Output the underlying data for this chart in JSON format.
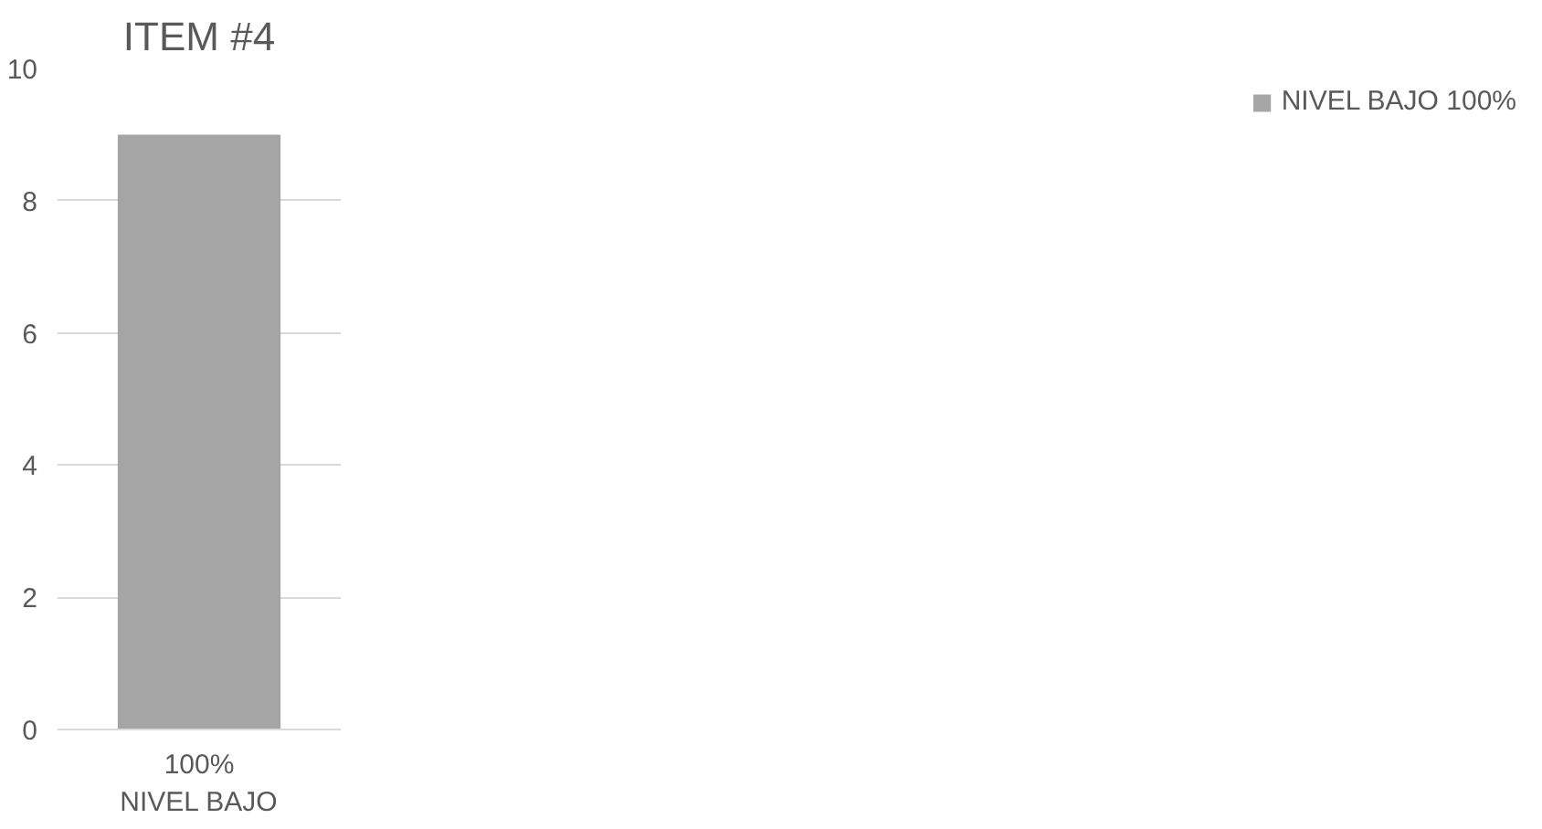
{
  "chart_data": {
    "type": "bar",
    "title": "ITEM #4",
    "categories": [
      "100%\nNIVEL BAJO"
    ],
    "series": [
      {
        "name": "NIVEL BAJO 100%",
        "color": "#a5a5a5",
        "values": [
          9
        ]
      }
    ],
    "ylim": [
      0,
      10
    ],
    "yticks": [
      0,
      2,
      4,
      6,
      8,
      10
    ],
    "grid": "y",
    "legend": "right"
  }
}
